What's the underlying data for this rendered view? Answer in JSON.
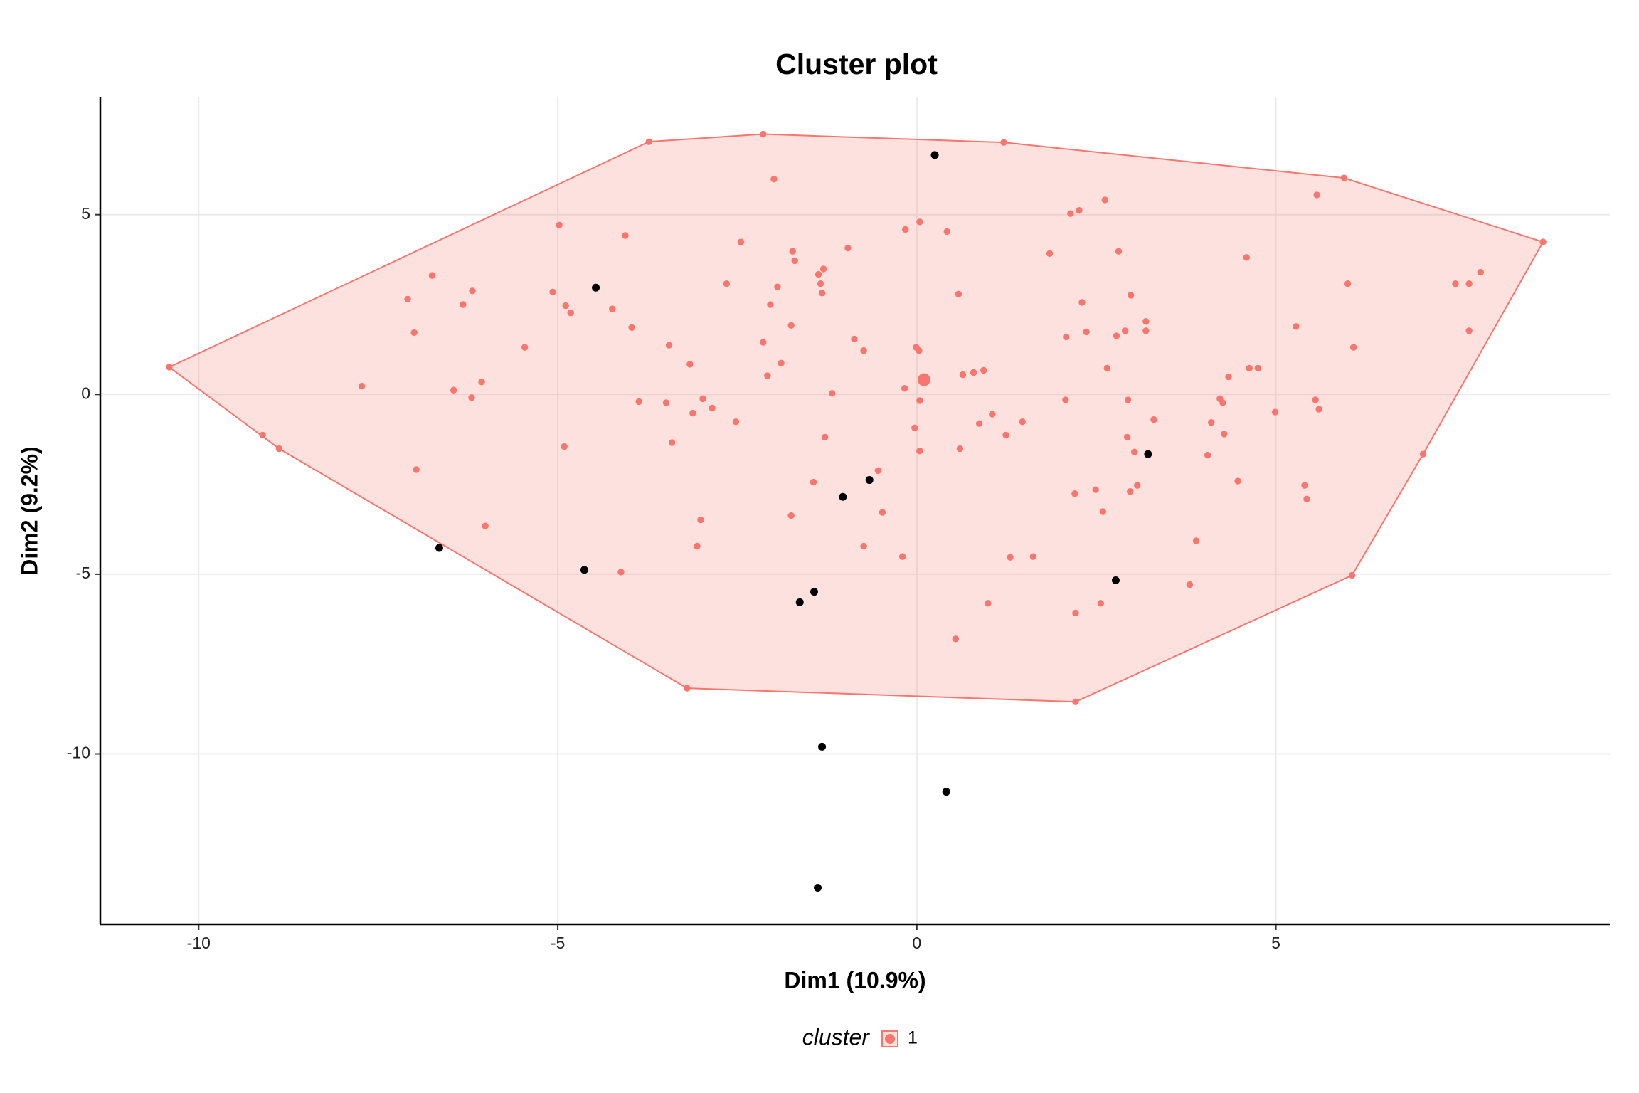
{
  "chart_data": {
    "type": "scatter",
    "title": "Cluster plot",
    "x_label": "Dim1 (10.9%)",
    "y_label": "Dim2 (9.2%)",
    "xlim": [
      -11.37,
      9.65
    ],
    "ylim": [
      -14.74,
      8.26
    ],
    "xticks": [
      -10,
      -5,
      0,
      5
    ],
    "yticks": [
      -10,
      -5,
      0,
      5
    ],
    "grid": true,
    "legend_title": "cluster",
    "legend_position": "bottom",
    "series": [
      {
        "name": "1",
        "color": "#F8766D",
        "x": [
          -10.41,
          -3.73,
          -2.14,
          1.21,
          5.95,
          8.72,
          6.06,
          2.21,
          -3.2,
          -8.88,
          -9.11,
          -6.75,
          -7.09,
          -7.0,
          -7.73,
          -6.97,
          -6.19,
          -6.32,
          -6.45,
          -6.2,
          -6.06,
          -6.01,
          -5.46,
          -5.07,
          -4.98,
          -4.89,
          -4.82,
          -4.91,
          -4.06,
          -4.24,
          -3.97,
          -3.87,
          -4.12,
          -3.49,
          -3.45,
          -3.41,
          -3.16,
          -3.12,
          -2.98,
          -2.85,
          -3.01,
          -3.06,
          -2.65,
          -2.45,
          -2.52,
          -1.99,
          -2.14,
          -2.04,
          -1.94,
          -2.08,
          -1.89,
          -1.73,
          -1.7,
          -1.75,
          -1.75,
          -1.44,
          -1.37,
          -1.34,
          -1.3,
          -1.32,
          -1.28,
          -1.18,
          -0.96,
          -0.87,
          -0.74,
          -0.74,
          -0.54,
          -0.48,
          -0.2,
          -0.16,
          -0.17,
          -0.01,
          0.03,
          0.04,
          0.04,
          -0.03,
          0.04,
          0.42,
          0.58,
          0.64,
          0.79,
          0.93,
          0.6,
          0.54,
          0.87,
          1.05,
          1.24,
          1.47,
          1.3,
          1.62,
          0.99,
          1.85,
          2.08,
          2.14,
          2.26,
          2.3,
          2.36,
          2.07,
          2.2,
          2.49,
          2.21,
          2.56,
          2.59,
          2.62,
          2.65,
          2.81,
          2.78,
          2.9,
          2.98,
          2.94,
          2.93,
          3.03,
          3.07,
          2.97,
          3.19,
          3.19,
          3.3,
          3.89,
          3.8,
          4.05,
          4.1,
          4.22,
          4.26,
          4.28,
          4.34,
          4.47,
          4.59,
          4.63,
          4.75,
          4.99,
          5.28,
          5.4,
          5.43,
          5.55,
          5.57,
          5.6,
          6.0,
          6.08,
          7.05,
          7.5,
          7.69,
          7.85,
          7.69
        ],
        "y": [
          0.76,
          7.03,
          7.24,
          7.01,
          6.02,
          4.24,
          -5.03,
          -8.55,
          -8.17,
          -1.51,
          -1.13,
          3.31,
          2.65,
          1.72,
          0.23,
          -2.09,
          2.88,
          2.5,
          0.12,
          -0.09,
          0.35,
          -3.66,
          1.31,
          2.85,
          4.71,
          2.47,
          2.27,
          -1.45,
          4.42,
          2.38,
          1.86,
          -0.2,
          -4.94,
          -0.23,
          1.37,
          -1.34,
          0.84,
          -0.52,
          -0.12,
          -0.38,
          -3.49,
          -4.22,
          3.08,
          4.24,
          -0.76,
          5.99,
          1.45,
          2.5,
          2.99,
          0.52,
          0.87,
          3.98,
          3.72,
          1.92,
          -3.37,
          -2.44,
          3.34,
          3.08,
          3.49,
          2.82,
          -1.19,
          0.03,
          4.07,
          1.54,
          1.22,
          -4.22,
          -2.12,
          -3.28,
          -4.51,
          4.59,
          0.17,
          1.31,
          1.22,
          -0.17,
          4.8,
          -0.93,
          -1.57,
          4.53,
          2.79,
          0.55,
          0.61,
          0.67,
          -1.51,
          -6.8,
          -0.81,
          -0.55,
          -1.13,
          -0.76,
          -4.53,
          -4.51,
          -5.81,
          3.92,
          1.6,
          5.03,
          5.12,
          2.56,
          1.74,
          -0.15,
          -2.76,
          -2.65,
          -6.08,
          -5.81,
          -3.26,
          5.41,
          0.73,
          3.98,
          1.63,
          1.77,
          2.76,
          -0.15,
          -1.19,
          -1.6,
          -2.53,
          -2.7,
          2.03,
          1.77,
          -0.7,
          -4.07,
          -5.29,
          -1.69,
          -0.78,
          -0.12,
          -0.23,
          -1.1,
          0.49,
          -2.41,
          3.81,
          0.73,
          0.73,
          -0.49,
          1.89,
          -2.53,
          -2.91,
          -0.15,
          5.55,
          -0.41,
          3.08,
          1.31,
          -1.66,
          3.08,
          3.08,
          3.4,
          1.77
        ]
      },
      {
        "color": "#000000",
        "x": [
          0.25,
          -4.47,
          -6.65,
          -4.63,
          -1.63,
          -1.43,
          -1.03,
          -0.66,
          3.22,
          2.77,
          -1.32,
          0.41,
          -1.38
        ],
        "y": [
          6.66,
          2.97,
          -4.27,
          -4.88,
          -5.78,
          -5.49,
          -2.85,
          -2.38,
          -1.66,
          -5.17,
          -9.8,
          -11.05,
          -13.72
        ]
      }
    ],
    "centroid": {
      "x": 0.1,
      "y": 0.41
    }
  }
}
